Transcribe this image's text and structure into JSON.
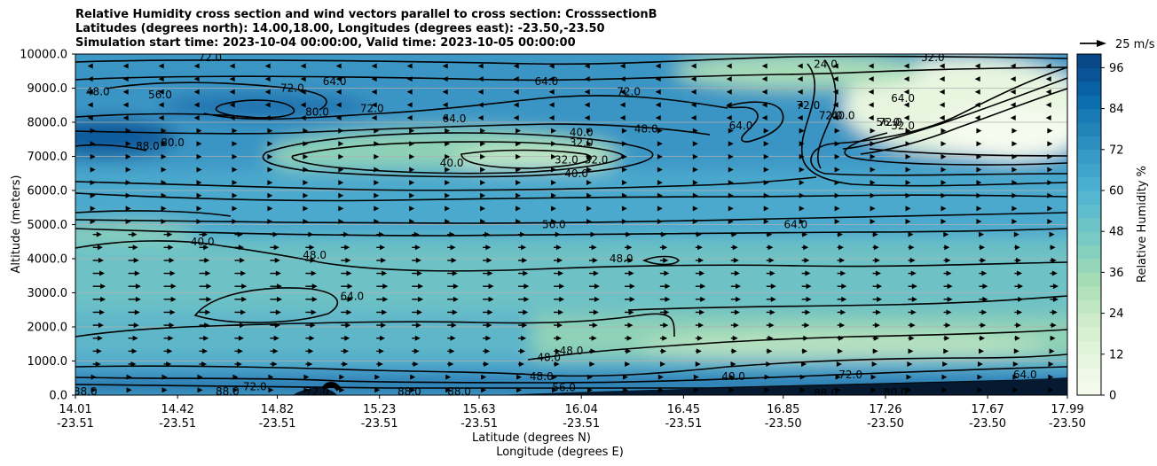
{
  "title": {
    "line1": "Relative Humidity cross section and wind vectors parallel to cross section: CrosssectionB",
    "line2": "Latitudes (degrees north): 14.00,18.00, Longitudes (degrees east): -23.50,-23.50",
    "line3": "Simulation start time: 2023-10-04 00:00:00, Valid time: 2023-10-05 00:00:00"
  },
  "colors": {
    "moist": "#0a4a8a",
    "mid_blue": "#3f98c8",
    "teal": "#6cc0c6",
    "green": "#a7dcb3",
    "dry": "#f2f9ea",
    "contour": "#000000"
  },
  "chart_data": {
    "type": "heatmap",
    "variable": "Relative Humidity %",
    "xlabel": "Latitude (degrees N)",
    "xlabel2": "Longitude (degrees E)",
    "ylabel": "Altitude (meters)",
    "ylim": [
      0,
      10000
    ],
    "xlim": [
      14.01,
      17.99
    ],
    "x_ticks_lat": [
      "14.01",
      "14.42",
      "14.82",
      "15.23",
      "15.63",
      "16.04",
      "16.45",
      "16.85",
      "17.26",
      "17.67",
      "17.99"
    ],
    "x_ticks_lon": [
      "-23.51",
      "-23.51",
      "-23.51",
      "-23.51",
      "-23.51",
      "-23.51",
      "-23.51",
      "-23.50",
      "-23.50",
      "-23.50",
      "-23.50"
    ],
    "y_ticks": [
      0,
      1000,
      2000,
      3000,
      4000,
      5000,
      6000,
      7000,
      8000,
      9000,
      10000
    ],
    "y_tick_labels": [
      "0.0",
      "1000.0",
      "2000.0",
      "3000.0",
      "4000.0",
      "5000.0",
      "6000.0",
      "7000.0",
      "8000.0",
      "9000.0",
      "10000.0"
    ],
    "colorbar": {
      "label": "Relative Humidity %",
      "range": [
        0,
        100
      ],
      "ticks": [
        0,
        12,
        24,
        36,
        48,
        60,
        72,
        84,
        96
      ],
      "levels": 25
    },
    "contour_labels": [
      {
        "text": "72.0",
        "x": 14.55,
        "y": 9900
      },
      {
        "text": "48.0",
        "x": 14.1,
        "y": 8900
      },
      {
        "text": "56.0",
        "x": 14.35,
        "y": 8800
      },
      {
        "text": "72.0",
        "x": 14.88,
        "y": 9000
      },
      {
        "text": "64.0",
        "x": 15.05,
        "y": 9200
      },
      {
        "text": "80.0",
        "x": 14.98,
        "y": 8300
      },
      {
        "text": "72.0",
        "x": 15.2,
        "y": 8400
      },
      {
        "text": "64.0",
        "x": 15.53,
        "y": 8100
      },
      {
        "text": "88.0",
        "x": 14.3,
        "y": 7300
      },
      {
        "text": "80.0",
        "x": 14.4,
        "y": 7400
      },
      {
        "text": "64.0",
        "x": 15.9,
        "y": 9200
      },
      {
        "text": "72.0",
        "x": 16.23,
        "y": 8900
      },
      {
        "text": "40.0",
        "x": 16.04,
        "y": 7700
      },
      {
        "text": "32.0",
        "x": 16.04,
        "y": 7400
      },
      {
        "text": "48.0",
        "x": 16.3,
        "y": 7800
      },
      {
        "text": "32.0",
        "x": 15.98,
        "y": 6900
      },
      {
        "text": "32.0",
        "x": 16.1,
        "y": 6900
      },
      {
        "text": "40.0",
        "x": 16.02,
        "y": 6500
      },
      {
        "text": "40.0",
        "x": 15.52,
        "y": 6800
      },
      {
        "text": "72.0",
        "x": 16.95,
        "y": 8500
      },
      {
        "text": "72.0",
        "x": 17.04,
        "y": 8200
      },
      {
        "text": "64.0",
        "x": 16.68,
        "y": 7900
      },
      {
        "text": "72.0",
        "x": 17.28,
        "y": 8000
      },
      {
        "text": "32.0",
        "x": 17.45,
        "y": 9900
      },
      {
        "text": "24.0",
        "x": 17.02,
        "y": 9700
      },
      {
        "text": "40.0",
        "x": 17.09,
        "y": 8200
      },
      {
        "text": "64.0",
        "x": 17.33,
        "y": 8700
      },
      {
        "text": "56.0",
        "x": 17.27,
        "y": 8000
      },
      {
        "text": "32.0",
        "x": 17.33,
        "y": 7900
      },
      {
        "text": "64.0",
        "x": 16.9,
        "y": 5000
      },
      {
        "text": "56.0",
        "x": 15.93,
        "y": 5000
      },
      {
        "text": "40.0",
        "x": 14.52,
        "y": 4500
      },
      {
        "text": "48.0",
        "x": 14.97,
        "y": 4100
      },
      {
        "text": "48.0",
        "x": 16.2,
        "y": 4000
      },
      {
        "text": "64.0",
        "x": 15.12,
        "y": 2900
      },
      {
        "text": "48.0",
        "x": 15.91,
        "y": 1100
      },
      {
        "text": "48.0",
        "x": 16.0,
        "y": 1300
      },
      {
        "text": "48.0",
        "x": 15.88,
        "y": 550
      },
      {
        "text": "56.0",
        "x": 15.97,
        "y": 220
      },
      {
        "text": "40.0",
        "x": 16.65,
        "y": 550
      },
      {
        "text": "72.0",
        "x": 14.73,
        "y": 250
      },
      {
        "text": "88.0",
        "x": 14.62,
        "y": 100
      },
      {
        "text": "72.0",
        "x": 14.98,
        "y": 100
      },
      {
        "text": "88.0",
        "x": 15.35,
        "y": 100
      },
      {
        "text": "88.0",
        "x": 15.55,
        "y": 100
      },
      {
        "text": "88.0",
        "x": 14.05,
        "y": 100
      },
      {
        "text": "72.0",
        "x": 17.12,
        "y": 600
      },
      {
        "text": "88.0",
        "x": 17.02,
        "y": 50
      },
      {
        "text": "80.0",
        "x": 17.3,
        "y": 80
      },
      {
        "text": "64.0",
        "x": 17.82,
        "y": 600
      }
    ],
    "quiver_key": {
      "label": "25 m/s",
      "value": 25
    }
  }
}
